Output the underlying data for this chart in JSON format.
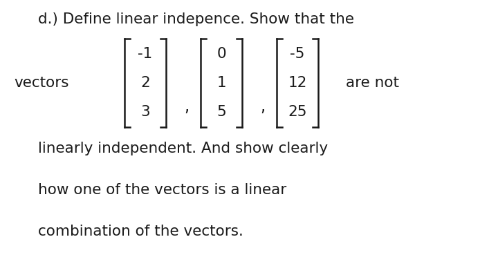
{
  "bg_color": "#ffffff",
  "title_line": "d.) Define linear indepence. Show that the",
  "line3": "linearly independent. And show clearly",
  "line4": "how one of the vectors is a linear",
  "line5": "combination of the vectors.",
  "vectors_label": "vectors",
  "are_not_label": "are not",
  "vec1": [
    "-1",
    "2",
    "3"
  ],
  "vec2": [
    "0",
    "1",
    "5"
  ],
  "vec3": [
    "-5",
    "12",
    "25"
  ],
  "font_size_main": 15.5,
  "font_size_vec": 15.5,
  "text_color": "#1a1a1a",
  "fig_w": 7.2,
  "fig_h": 3.98,
  "dpi": 100
}
